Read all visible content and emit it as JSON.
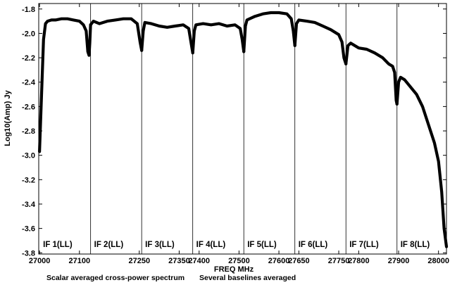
{
  "chart_data": {
    "type": "line",
    "xlabel": "FREQ MHz",
    "ylabel": "Log10(Amp) Jy",
    "xlim": [
      26998,
      28020
    ],
    "ylim": [
      -3.81,
      -1.755
    ],
    "x_ticks": [
      "27000",
      "27100",
      "27250",
      "27350",
      "27400",
      "27500",
      "27600",
      "27650",
      "27750",
      "27800",
      "27900",
      "28000"
    ],
    "y_ticks": [
      "-1.8",
      "-2.0",
      "-2.2",
      "-2.4",
      "-2.6",
      "-2.8",
      "-3.0",
      "-3.2",
      "-3.4",
      "-3.6",
      "-3.8"
    ],
    "y_tick_values": [
      -1.8,
      -2.0,
      -2.2,
      -2.4,
      -2.6,
      -2.8,
      -3.0,
      -3.2,
      -3.4,
      -3.6,
      -3.8
    ],
    "x_tick_values": [
      27000,
      27100,
      27250,
      27350,
      27400,
      27500,
      27600,
      27650,
      27750,
      27800,
      27900,
      28000
    ],
    "panel_boundaries": [
      27000,
      27128,
      27256,
      27384,
      27512,
      27640,
      27768,
      27896,
      28024
    ],
    "panels": [
      {
        "label": "IF 1(LL)",
        "x": [
          27000,
          27005,
          27010,
          27015,
          27020,
          27030,
          27040,
          27055,
          27070,
          27085,
          27100,
          27110,
          27117,
          27121,
          27124,
          27126,
          27128
        ],
        "y": [
          -2.97,
          -2.5,
          -2.05,
          -1.92,
          -1.9,
          -1.89,
          -1.89,
          -1.88,
          -1.88,
          -1.89,
          -1.9,
          -1.93,
          -1.98,
          -2.15,
          -2.18,
          -2.08,
          -1.93
        ]
      },
      {
        "label": "IF 2(LL)",
        "x": [
          27128,
          27135,
          27150,
          27170,
          27190,
          27210,
          27230,
          27245,
          27252,
          27256
        ],
        "y": [
          -1.93,
          -1.9,
          -1.92,
          -1.9,
          -1.89,
          -1.88,
          -1.88,
          -1.92,
          -2.07,
          -2.14
        ]
      },
      {
        "label": "IF 3(LL)",
        "x": [
          27256,
          27260,
          27264,
          27280,
          27300,
          27320,
          27340,
          27360,
          27374,
          27380,
          27384
        ],
        "y": [
          -2.14,
          -1.98,
          -1.91,
          -1.92,
          -1.94,
          -1.95,
          -1.94,
          -1.93,
          -1.96,
          -2.08,
          -2.16
        ]
      },
      {
        "label": "IF 4(LL)",
        "x": [
          27384,
          27388,
          27392,
          27410,
          27430,
          27450,
          27470,
          27490,
          27503,
          27508,
          27512
        ],
        "y": [
          -2.16,
          -1.98,
          -1.93,
          -1.92,
          -1.93,
          -1.92,
          -1.94,
          -1.93,
          -1.96,
          -2.05,
          -2.15
        ]
      },
      {
        "label": "IF 5(LL)",
        "x": [
          27512,
          27516,
          27520,
          27540,
          27560,
          27580,
          27600,
          27620,
          27631,
          27636,
          27640
        ],
        "y": [
          -2.15,
          -1.94,
          -1.89,
          -1.86,
          -1.84,
          -1.83,
          -1.83,
          -1.84,
          -1.88,
          -1.98,
          -2.1
        ]
      },
      {
        "label": "IF 6(LL)",
        "x": [
          27640,
          27644,
          27650,
          27670,
          27690,
          27710,
          27730,
          27750,
          27758,
          27763,
          27768
        ],
        "y": [
          -2.1,
          -1.92,
          -1.89,
          -1.9,
          -1.91,
          -1.94,
          -1.97,
          -2.01,
          -2.07,
          -2.2,
          -2.25
        ]
      },
      {
        "label": "IF 7(LL)",
        "x": [
          27768,
          27773,
          27780,
          27800,
          27820,
          27840,
          27860,
          27875,
          27885,
          27890,
          27894,
          27896
        ],
        "y": [
          -2.25,
          -2.1,
          -2.08,
          -2.12,
          -2.13,
          -2.16,
          -2.2,
          -2.25,
          -2.27,
          -2.32,
          -2.55,
          -2.58
        ]
      },
      {
        "label": "IF 8(LL)",
        "x": [
          27896,
          27900,
          27905,
          27915,
          27930,
          27945,
          27960,
          27975,
          27990,
          28000,
          28008,
          28014,
          28020
        ],
        "y": [
          -2.58,
          -2.4,
          -2.36,
          -2.38,
          -2.44,
          -2.5,
          -2.6,
          -2.75,
          -2.9,
          -3.05,
          -3.3,
          -3.6,
          -3.75
        ]
      }
    ]
  },
  "footer": {
    "left": "Scalar averaged cross-power spectrum",
    "right": "Several baselines averaged"
  }
}
